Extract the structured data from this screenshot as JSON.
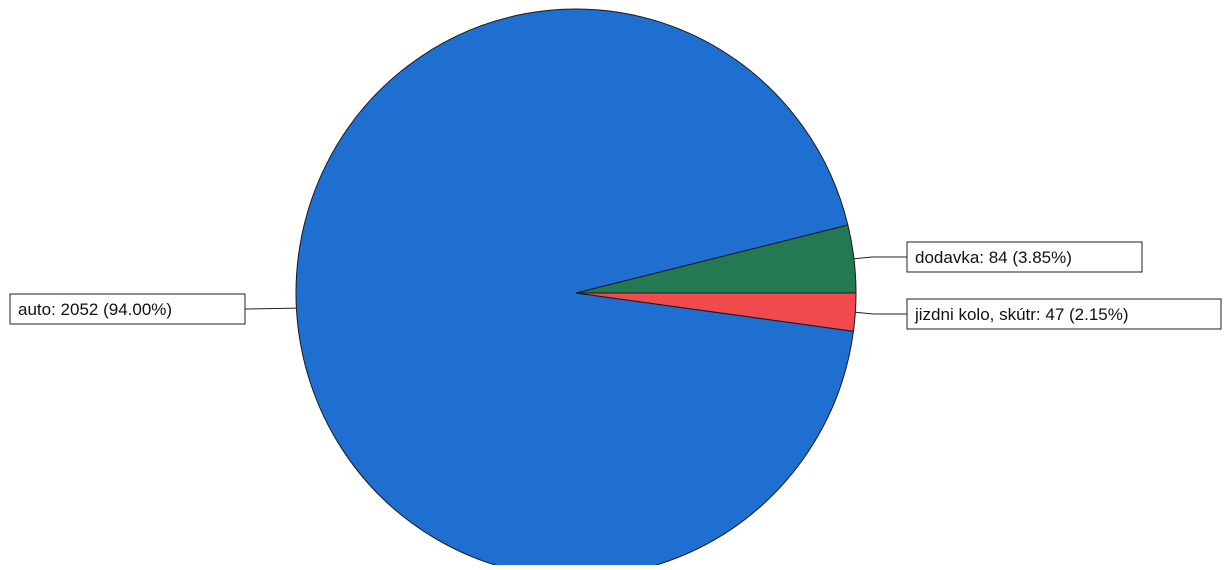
{
  "chart_data": {
    "type": "pie",
    "title": "",
    "slices": [
      {
        "name": "auto",
        "value": 2052,
        "percent": 94.0,
        "label": "auto: 2052 (94.00%)",
        "color": "#1f6fd0"
      },
      {
        "name": "dodavka",
        "value": 84,
        "percent": 3.85,
        "label": "dodavka: 84 (3.85%)",
        "color": "#237a52"
      },
      {
        "name": "jizdni kolo, skútr",
        "value": 47,
        "percent": 2.15,
        "label": "jizdni kolo, skútr: 47 (2.15%)",
        "color": "#f04a4e"
      }
    ],
    "legend": "none"
  }
}
